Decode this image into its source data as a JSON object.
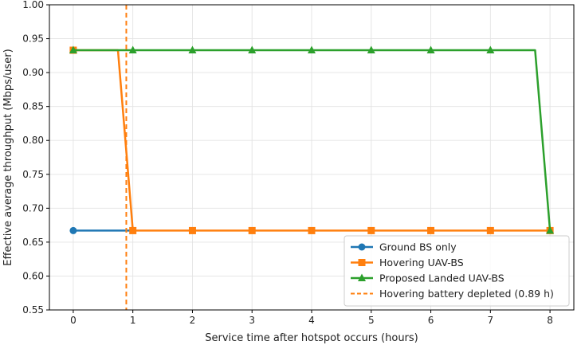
{
  "chart_data": {
    "type": "line",
    "xlabel": "Service time after hotspot occurs (hours)",
    "ylabel": "Effective average throughput (Mbps/user)",
    "xlim": [
      -0.4,
      8.4
    ],
    "ylim": [
      0.55,
      1.0
    ],
    "xticks": [
      0,
      1,
      2,
      3,
      4,
      5,
      6,
      7,
      8
    ],
    "yticks": [
      0.55,
      0.6,
      0.65,
      0.7,
      0.75,
      0.8,
      0.85,
      0.9,
      0.95,
      1.0
    ],
    "ytick_labels": [
      "0.55",
      "0.60",
      "0.65",
      "0.70",
      "0.75",
      "0.80",
      "0.85",
      "0.90",
      "0.95",
      "1.00"
    ],
    "grid": true,
    "legend_position": "lower-right",
    "series": [
      {
        "name": "Ground BS only",
        "color": "#1f77b4",
        "marker": "circle",
        "line_x": [
          0,
          1
        ],
        "line_y": [
          0.667,
          0.667
        ],
        "marker_x": [
          0
        ],
        "marker_y": [
          0.667
        ]
      },
      {
        "name": "Hovering UAV-BS",
        "color": "#ff7f0e",
        "marker": "square",
        "line_x": [
          0,
          0.75,
          1,
          2,
          3,
          4,
          5,
          6,
          7,
          8
        ],
        "line_y": [
          0.933,
          0.933,
          0.667,
          0.667,
          0.667,
          0.667,
          0.667,
          0.667,
          0.667,
          0.667
        ],
        "marker_x": [
          0,
          1,
          2,
          3,
          4,
          5,
          6,
          7,
          8
        ],
        "marker_y": [
          0.933,
          0.667,
          0.667,
          0.667,
          0.667,
          0.667,
          0.667,
          0.667,
          0.667
        ]
      },
      {
        "name": "Proposed Landed UAV-BS",
        "color": "#2ca02c",
        "marker": "triangle",
        "line_x": [
          0,
          1,
          2,
          3,
          4,
          5,
          6,
          7,
          7.75,
          8
        ],
        "line_y": [
          0.933,
          0.933,
          0.933,
          0.933,
          0.933,
          0.933,
          0.933,
          0.933,
          0.933,
          0.667
        ],
        "marker_x": [
          0,
          1,
          2,
          3,
          4,
          5,
          6,
          7,
          8
        ],
        "marker_y": [
          0.933,
          0.933,
          0.933,
          0.933,
          0.933,
          0.933,
          0.933,
          0.933,
          0.667
        ]
      }
    ],
    "vline": {
      "name": "Hovering battery depleted (0.89 h)",
      "x": 0.89,
      "color": "#ff7f0e",
      "style": "dashed"
    }
  }
}
